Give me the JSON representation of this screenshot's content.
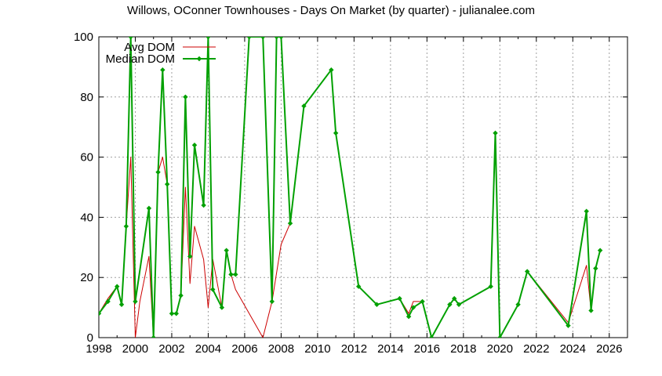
{
  "chart_data": {
    "type": "line",
    "title": "Willows, OConner Townhouses - Days On Market (by quarter) - julianalee.com",
    "xlabel": "",
    "ylabel": "",
    "xlim": [
      1998,
      2027
    ],
    "ylim": [
      0,
      100
    ],
    "x_ticks": [
      1998,
      2000,
      2002,
      2004,
      2006,
      2008,
      2010,
      2012,
      2014,
      2016,
      2018,
      2020,
      2022,
      2024,
      2026
    ],
    "y_ticks": [
      0,
      20,
      40,
      60,
      80,
      100
    ],
    "grid": true,
    "legend_position": "top-left",
    "series": [
      {
        "name": "Avg DOM",
        "color": "#cc0000",
        "marker": "none",
        "x": [
          1998.0,
          1998.5,
          1999.0,
          1999.25,
          1999.5,
          1999.75,
          2000.0,
          2000.25,
          2000.75,
          2001.0,
          2001.25,
          2001.5,
          2001.75,
          2002.0,
          2002.25,
          2002.5,
          2002.75,
          2003.0,
          2003.25,
          2003.75,
          2004.0,
          2004.25,
          2004.75,
          2005.0,
          2005.25,
          2005.5,
          2007.0,
          2007.5,
          2008.0,
          2008.5,
          2009.25,
          2010.75,
          2011.0,
          2012.25,
          2013.25,
          2014.5,
          2015.0,
          2015.25,
          2015.75,
          2016.25,
          2017.25,
          2017.5,
          2017.75,
          2019.5,
          2019.75,
          2020.0,
          2021.0,
          2021.5,
          2023.75,
          2024.75,
          2025.0,
          2025.25,
          2025.5
        ],
        "y": [
          8,
          13,
          17,
          11,
          37,
          60,
          0,
          12,
          27,
          0,
          55,
          60,
          51,
          8,
          8,
          14,
          50,
          18,
          37,
          26,
          10,
          26,
          10,
          29,
          21,
          16,
          0,
          12,
          31,
          38,
          77,
          89,
          68,
          17,
          11,
          13,
          8,
          12,
          12,
          0,
          11,
          13,
          11,
          17,
          68,
          0,
          11,
          22,
          5,
          24,
          9,
          23,
          29
        ]
      },
      {
        "name": "Median DOM",
        "color": "#00a000",
        "marker": "diamond",
        "x": [
          1998.0,
          1998.5,
          1999.0,
          1999.25,
          1999.5,
          1999.75,
          2000.0,
          2000.75,
          2001.0,
          2001.25,
          2001.5,
          2001.75,
          2002.0,
          2002.25,
          2002.5,
          2002.75,
          2003.0,
          2003.25,
          2003.75,
          2004.0,
          2004.25,
          2004.75,
          2005.0,
          2005.25,
          2005.5,
          2006.25,
          2007.0,
          2007.5,
          2007.75,
          2008.0,
          2008.5,
          2009.25,
          2010.75,
          2011.0,
          2012.25,
          2013.25,
          2014.5,
          2015.0,
          2015.25,
          2015.75,
          2016.25,
          2017.25,
          2017.5,
          2017.75,
          2019.5,
          2019.75,
          2020.0,
          2021.0,
          2021.5,
          2023.75,
          2024.75,
          2025.0,
          2025.25,
          2025.5
        ],
        "y": [
          8,
          12,
          17,
          11,
          37,
          100,
          12,
          43,
          0,
          55,
          89,
          51,
          8,
          8,
          14,
          80,
          27,
          64,
          44,
          100,
          16,
          10,
          29,
          21,
          21,
          100,
          100,
          12,
          100,
          100,
          38,
          77,
          89,
          68,
          17,
          11,
          13,
          7,
          10,
          12,
          0,
          11,
          13,
          11,
          17,
          68,
          0,
          11,
          22,
          4,
          42,
          9,
          23,
          29
        ]
      }
    ]
  }
}
